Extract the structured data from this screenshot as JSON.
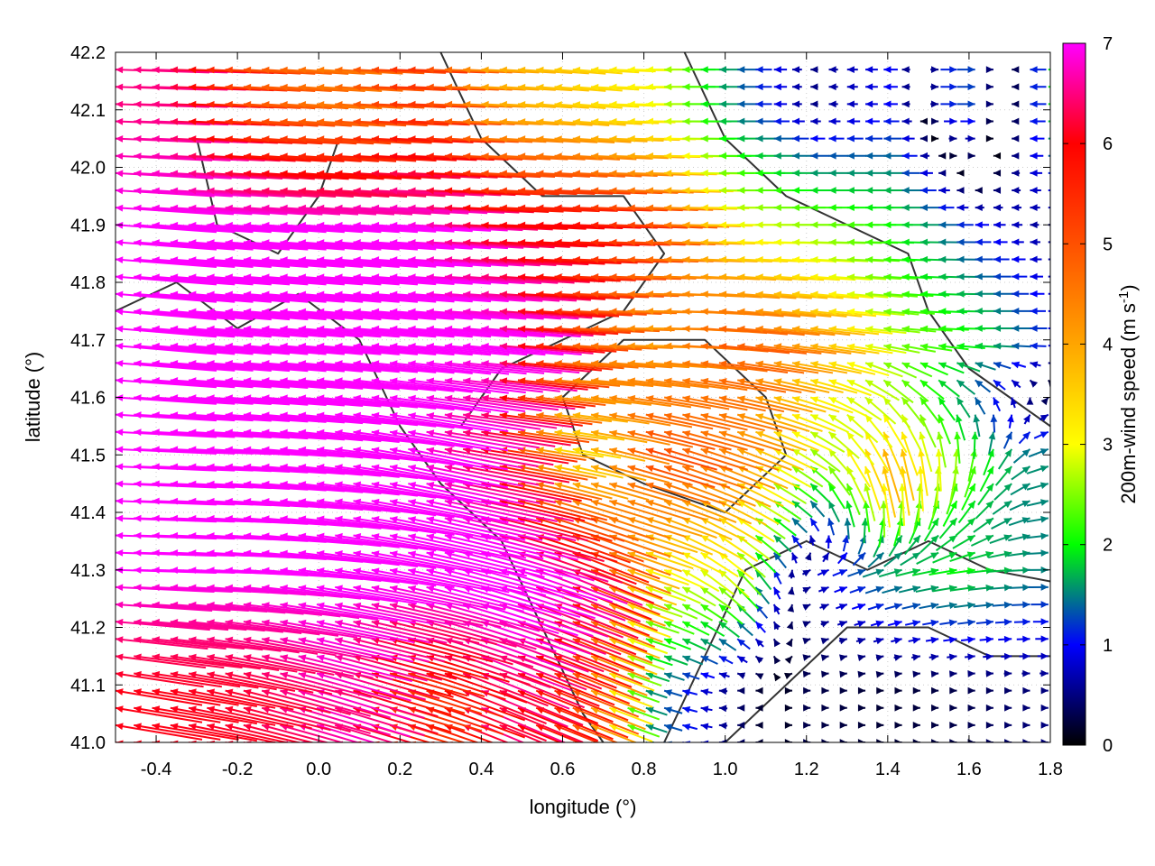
{
  "chart_data": {
    "type": "vector-field",
    "xlabel": "longitude (°)",
    "ylabel": "latitude (°)",
    "xlim": [
      -0.5,
      1.8
    ],
    "ylim": [
      41.0,
      42.2
    ],
    "xticks": [
      "-0.4",
      "-0.2",
      "0.0",
      "0.2",
      "0.4",
      "0.6",
      "0.8",
      "1.0",
      "1.2",
      "1.4",
      "1.6",
      "1.8"
    ],
    "yticks": [
      "41.0",
      "41.1",
      "41.2",
      "41.3",
      "41.4",
      "41.5",
      "41.6",
      "41.7",
      "41.8",
      "41.9",
      "42.0",
      "42.1",
      "42.2"
    ],
    "grid": true,
    "colorbar": {
      "label": "200m-wind speed (m s",
      "label_sup": "-1",
      "label_end": ")",
      "range": [
        0,
        7
      ],
      "ticks": [
        "0",
        "1",
        "2",
        "3",
        "4",
        "5",
        "6",
        "7"
      ],
      "stops": [
        {
          "v": 0,
          "color": "#000000"
        },
        {
          "v": 1,
          "color": "#0000ff"
        },
        {
          "v": 1.5,
          "color": "#008080"
        },
        {
          "v": 2,
          "color": "#00ff00"
        },
        {
          "v": 3,
          "color": "#ffff00"
        },
        {
          "v": 4,
          "color": "#ffa500"
        },
        {
          "v": 5,
          "color": "#ff5000"
        },
        {
          "v": 6,
          "color": "#ff0000"
        },
        {
          "v": 7,
          "color": "#ff00ff"
        }
      ]
    },
    "vectors": {
      "lon": [
        -0.4,
        -0.2,
        0.0,
        0.2,
        0.4,
        0.6,
        0.8,
        1.0,
        1.2,
        1.4,
        1.6,
        1.8
      ],
      "lat": [
        42.1,
        41.9,
        41.7,
        41.5,
        41.3,
        41.1
      ],
      "u": [
        [
          -6.5,
          -5,
          -4.5,
          -5.5,
          -4,
          -3.5,
          -3,
          -1.5,
          -0.5,
          -1,
          1.5,
          -2
        ],
        [
          -7,
          -7,
          -7,
          -7,
          -6,
          -6,
          -5,
          -3,
          -2.5,
          -2,
          -1,
          -0.5
        ],
        [
          -7,
          -7,
          -7,
          -7,
          -7,
          -5,
          -4,
          -5,
          -4,
          -2.5,
          -2,
          -1
        ],
        [
          -7,
          -7,
          -7,
          -7,
          -6,
          -3,
          -5,
          -4,
          -2,
          -1,
          0.5,
          1.5
        ],
        [
          -7,
          -7,
          -7,
          -7,
          -7,
          -6,
          -3,
          -2,
          0.5,
          1.5,
          2,
          1.5
        ],
        [
          -6,
          -6,
          -6.5,
          -5,
          -6,
          -5,
          -1.5,
          -0.5,
          0.3,
          0.2,
          0.3,
          0.5
        ]
      ],
      "v": [
        [
          0.2,
          0.3,
          0.3,
          0.2,
          0.2,
          0.3,
          0,
          0,
          0,
          0,
          0,
          0
        ],
        [
          0.5,
          0.5,
          0.5,
          0.4,
          0.3,
          0.2,
          0.2,
          0,
          0,
          0,
          0,
          0
        ],
        [
          0.6,
          0.6,
          0.6,
          0.6,
          0.6,
          0.3,
          0,
          0.5,
          0.5,
          0.3,
          0,
          0
        ],
        [
          0.3,
          0.5,
          0.8,
          1.5,
          1,
          0.5,
          1.5,
          1.5,
          1.5,
          4,
          2.5,
          0.5
        ],
        [
          0.2,
          0.5,
          1,
          1.5,
          2,
          2.5,
          1,
          2,
          0.3,
          0.5,
          0.3,
          0
        ],
        [
          1,
          1.5,
          2,
          1.5,
          2.5,
          2,
          0.5,
          0,
          0,
          0,
          0,
          0
        ]
      ]
    },
    "contours": [
      [
        [
          -0.5,
          41.75
        ],
        [
          -0.35,
          41.8
        ],
        [
          -0.2,
          41.72
        ],
        [
          -0.05,
          41.78
        ],
        [
          0.1,
          41.7
        ],
        [
          0.2,
          41.55
        ],
        [
          0.3,
          41.45
        ],
        [
          0.45,
          41.35
        ],
        [
          0.55,
          41.2
        ],
        [
          0.65,
          41.05
        ],
        [
          0.7,
          41.0
        ]
      ],
      [
        [
          0.3,
          42.2
        ],
        [
          0.4,
          42.05
        ],
        [
          0.55,
          41.95
        ],
        [
          0.75,
          41.95
        ],
        [
          0.85,
          41.85
        ],
        [
          0.75,
          41.75
        ],
        [
          0.6,
          41.7
        ],
        [
          0.45,
          41.65
        ],
        [
          0.35,
          41.55
        ]
      ],
      [
        [
          0.85,
          41.0
        ],
        [
          0.95,
          41.15
        ],
        [
          1.05,
          41.3
        ],
        [
          1.2,
          41.35
        ],
        [
          1.35,
          41.3
        ],
        [
          1.5,
          41.35
        ],
        [
          1.65,
          41.3
        ],
        [
          1.8,
          41.28
        ]
      ],
      [
        [
          0.9,
          42.2
        ],
        [
          1.0,
          42.05
        ],
        [
          1.15,
          41.95
        ],
        [
          1.3,
          41.9
        ],
        [
          1.45,
          41.85
        ],
        [
          1.5,
          41.75
        ],
        [
          1.6,
          41.65
        ],
        [
          1.7,
          41.6
        ],
        [
          1.8,
          41.55
        ]
      ],
      [
        [
          1.0,
          41.0
        ],
        [
          1.15,
          41.1
        ],
        [
          1.3,
          41.2
        ],
        [
          1.5,
          41.2
        ],
        [
          1.65,
          41.15
        ],
        [
          1.8,
          41.15
        ]
      ],
      [
        [
          -0.3,
          42.05
        ],
        [
          -0.25,
          41.9
        ],
        [
          -0.1,
          41.85
        ],
        [
          0.0,
          41.95
        ],
        [
          0.05,
          42.05
        ]
      ],
      [
        [
          0.6,
          41.6
        ],
        [
          0.75,
          41.7
        ],
        [
          0.95,
          41.7
        ],
        [
          1.1,
          41.6
        ],
        [
          1.15,
          41.5
        ],
        [
          1.0,
          41.4
        ],
        [
          0.8,
          41.45
        ],
        [
          0.65,
          41.5
        ],
        [
          0.6,
          41.6
        ]
      ]
    ]
  }
}
